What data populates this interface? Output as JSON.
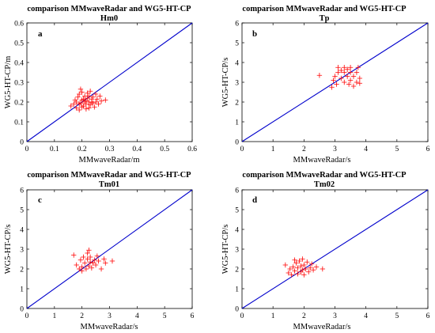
{
  "figure": {
    "type": "scatter-panels",
    "marker": "plus",
    "marker_color": "#ff0000",
    "line_color": "#0000cc"
  },
  "chart_data": [
    {
      "type": "scatter",
      "letter": "a",
      "title": "comparison MMwaveRadar and WG5-HT-CP",
      "subtitle": "Hm0",
      "xlabel": "MMwaveRadar/m",
      "ylabel": "WG5-HT-CP/m",
      "xlim": [
        0,
        0.6
      ],
      "ylim": [
        0,
        0.6
      ],
      "xticks": [
        "0",
        "0.1",
        "0.2",
        "0.3",
        "0.4",
        "0.5",
        "0.6"
      ],
      "yticks": [
        "0",
        "0.1",
        "0.2",
        "0.3",
        "0.4",
        "0.5",
        "0.6"
      ],
      "reference_line": [
        [
          0,
          0
        ],
        [
          0.6,
          0.6
        ]
      ],
      "points": [
        [
          0.16,
          0.18
        ],
        [
          0.17,
          0.19
        ],
        [
          0.175,
          0.21
        ],
        [
          0.18,
          0.17
        ],
        [
          0.18,
          0.2
        ],
        [
          0.185,
          0.225
        ],
        [
          0.19,
          0.16
        ],
        [
          0.19,
          0.19
        ],
        [
          0.19,
          0.24
        ],
        [
          0.195,
          0.265
        ],
        [
          0.2,
          0.175
        ],
        [
          0.2,
          0.21
        ],
        [
          0.2,
          0.25
        ],
        [
          0.205,
          0.18
        ],
        [
          0.21,
          0.2
        ],
        [
          0.21,
          0.23
        ],
        [
          0.215,
          0.165
        ],
        [
          0.215,
          0.19
        ],
        [
          0.22,
          0.22
        ],
        [
          0.22,
          0.245
        ],
        [
          0.225,
          0.17
        ],
        [
          0.225,
          0.2
        ],
        [
          0.23,
          0.255
        ],
        [
          0.23,
          0.185
        ],
        [
          0.235,
          0.215
        ],
        [
          0.24,
          0.195
        ],
        [
          0.24,
          0.225
        ],
        [
          0.245,
          0.175
        ],
        [
          0.25,
          0.2
        ],
        [
          0.25,
          0.24
        ],
        [
          0.255,
          0.215
        ],
        [
          0.26,
          0.19
        ],
        [
          0.265,
          0.23
        ],
        [
          0.27,
          0.205
        ],
        [
          0.285,
          0.21
        ],
        [
          0.205,
          0.215
        ],
        [
          0.215,
          0.205
        ],
        [
          0.235,
          0.2
        ],
        [
          0.195,
          0.195
        ],
        [
          0.225,
          0.23
        ]
      ]
    },
    {
      "type": "scatter",
      "letter": "b",
      "title": "comparison MMwaveRadar and WG5-HT-CP",
      "subtitle": "Tp",
      "xlabel": "MMwaveRadar/s",
      "ylabel": "WG5-HT-CP/s",
      "xlim": [
        0,
        6
      ],
      "ylim": [
        0,
        6
      ],
      "xticks": [
        "0",
        "1",
        "2",
        "3",
        "4",
        "5",
        "6"
      ],
      "yticks": [
        "0",
        "1",
        "2",
        "3",
        "4",
        "5",
        "6"
      ],
      "reference_line": [
        [
          0,
          0
        ],
        [
          6,
          6
        ]
      ],
      "points": [
        [
          2.5,
          3.35
        ],
        [
          2.9,
          2.75
        ],
        [
          2.95,
          3.1
        ],
        [
          3.0,
          3.3
        ],
        [
          3.05,
          2.9
        ],
        [
          3.1,
          3.5
        ],
        [
          3.1,
          3.75
        ],
        [
          3.2,
          3.2
        ],
        [
          3.3,
          3.0
        ],
        [
          3.3,
          3.5
        ],
        [
          3.3,
          3.75
        ],
        [
          3.4,
          3.3
        ],
        [
          3.45,
          2.9
        ],
        [
          3.5,
          3.1
        ],
        [
          3.5,
          3.5
        ],
        [
          3.5,
          3.75
        ],
        [
          3.6,
          3.3
        ],
        [
          3.6,
          2.8
        ],
        [
          3.7,
          3.0
        ],
        [
          3.7,
          3.5
        ],
        [
          3.75,
          3.75
        ],
        [
          3.8,
          3.2
        ],
        [
          3.8,
          2.95
        ],
        [
          3.4,
          3.65
        ],
        [
          3.2,
          3.6
        ]
      ]
    },
    {
      "type": "scatter",
      "letter": "c",
      "title": "comparison MMwaveRadar and WG5-HT-CP",
      "subtitle": "Tm01",
      "xlabel": "MMwaveRadar/s",
      "ylabel": "WG5-HT-CP/s",
      "xlim": [
        0,
        6
      ],
      "ylim": [
        0,
        6
      ],
      "xticks": [
        "0",
        "1",
        "2",
        "3",
        "4",
        "5",
        "6"
      ],
      "yticks": [
        "0",
        "1",
        "2",
        "3",
        "4",
        "5",
        "6"
      ],
      "reference_line": [
        [
          0,
          0
        ],
        [
          6,
          6
        ]
      ],
      "points": [
        [
          1.7,
          2.7
        ],
        [
          1.8,
          2.2
        ],
        [
          1.9,
          2.0
        ],
        [
          1.95,
          2.45
        ],
        [
          2.0,
          2.1
        ],
        [
          2.05,
          2.6
        ],
        [
          2.1,
          2.3
        ],
        [
          2.15,
          2.0
        ],
        [
          2.2,
          2.5
        ],
        [
          2.2,
          2.8
        ],
        [
          2.25,
          2.15
        ],
        [
          2.3,
          2.35
        ],
        [
          2.3,
          2.6
        ],
        [
          2.35,
          2.05
        ],
        [
          2.4,
          2.3
        ],
        [
          2.45,
          2.45
        ],
        [
          2.5,
          2.2
        ],
        [
          2.6,
          2.4
        ],
        [
          2.7,
          2.0
        ],
        [
          2.8,
          2.5
        ],
        [
          2.85,
          2.3
        ],
        [
          3.1,
          2.4
        ],
        [
          2.25,
          2.95
        ],
        [
          2.0,
          1.9
        ],
        [
          2.55,
          2.65
        ]
      ]
    },
    {
      "type": "scatter",
      "letter": "d",
      "title": "comparison MMwaveRadar and WG5-HT-CP",
      "subtitle": "Tm02",
      "xlabel": "MMwaveRadar/s",
      "ylabel": "WG5-HT-CP/s",
      "xlim": [
        0,
        6
      ],
      "ylim": [
        0,
        6
      ],
      "xticks": [
        "0",
        "1",
        "2",
        "3",
        "4",
        "5",
        "6"
      ],
      "yticks": [
        "0",
        "1",
        "2",
        "3",
        "4",
        "5",
        "6"
      ],
      "reference_line": [
        [
          0,
          0
        ],
        [
          6,
          6
        ]
      ],
      "points": [
        [
          1.4,
          2.2
        ],
        [
          1.5,
          1.8
        ],
        [
          1.55,
          2.0
        ],
        [
          1.6,
          1.7
        ],
        [
          1.65,
          2.1
        ],
        [
          1.7,
          1.9
        ],
        [
          1.75,
          2.3
        ],
        [
          1.8,
          1.75
        ],
        [
          1.8,
          2.05
        ],
        [
          1.85,
          2.4
        ],
        [
          1.9,
          1.85
        ],
        [
          1.9,
          2.15
        ],
        [
          1.95,
          1.95
        ],
        [
          2.0,
          2.2
        ],
        [
          2.0,
          1.7
        ],
        [
          2.05,
          2.0
        ],
        [
          2.1,
          2.35
        ],
        [
          2.15,
          1.85
        ],
        [
          2.2,
          2.05
        ],
        [
          2.3,
          1.95
        ],
        [
          2.4,
          2.1
        ],
        [
          2.6,
          2.0
        ],
        [
          1.7,
          2.45
        ],
        [
          1.95,
          2.5
        ],
        [
          2.25,
          2.25
        ]
      ]
    }
  ]
}
